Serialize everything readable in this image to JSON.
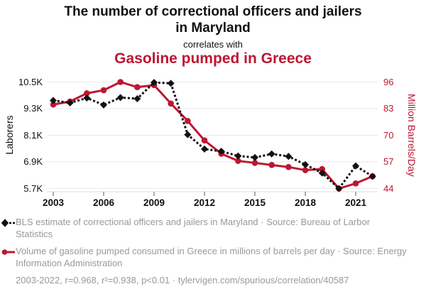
{
  "header": {
    "title": "The number of correctional officers and jailers in Maryland",
    "subtitle": "correlates with",
    "title2": "Gasoline pumped in Greece"
  },
  "colors": {
    "red": "#bd1732",
    "black": "#111111",
    "gridline": "#e8e8e8",
    "axis_line": "#dcdcdc",
    "tick_mark": "#808080",
    "muted_text": "#999999"
  },
  "chart_data": {
    "type": "line",
    "x": [
      2003,
      2004,
      2005,
      2006,
      2007,
      2008,
      2009,
      2010,
      2011,
      2012,
      2013,
      2014,
      2015,
      2016,
      2017,
      2018,
      2019,
      2020,
      2021,
      2022
    ],
    "series": [
      {
        "id": "maryland-officers",
        "name": "BLS estimate of correctional officers and jailers in Maryland",
        "axis": "left",
        "style": "dashed-diamond",
        "color": "#111111",
        "values": [
          9670,
          9560,
          9780,
          9470,
          9800,
          9750,
          10480,
          10440,
          8130,
          7480,
          7380,
          7170,
          7100,
          7260,
          7150,
          6780,
          6400,
          5700,
          6720,
          6250
        ]
      },
      {
        "id": "greece-gasoline",
        "name": "Volume of gasoline pumped consumed in Greece",
        "axis": "right",
        "style": "solid-circle",
        "color": "#bd1732",
        "values": [
          85,
          86.5,
          90.5,
          92,
          96,
          93.5,
          94.5,
          85.5,
          77,
          67.5,
          61,
          57.5,
          56.5,
          55.5,
          54.5,
          53,
          53.5,
          44,
          46.5,
          50
        ]
      }
    ],
    "left_axis": {
      "label": "Laborers",
      "ticks": [
        "10.5K",
        "9.3K",
        "8.1K",
        "6.9K",
        "5.7K"
      ],
      "tick_values": [
        10500,
        9300,
        8100,
        6900,
        5700
      ],
      "range": [
        5700,
        10500
      ]
    },
    "right_axis": {
      "label": "Million Barrels/Day",
      "ticks": [
        "96",
        "83",
        "70",
        "57",
        "44"
      ],
      "tick_values": [
        96,
        83,
        70,
        57,
        44
      ],
      "range": [
        44,
        96
      ]
    },
    "x_axis": {
      "ticks": [
        2003,
        2006,
        2009,
        2012,
        2015,
        2018,
        2021
      ]
    },
    "grid": "horizontal-only",
    "legend_position": "bottom"
  },
  "legend": {
    "items": [
      {
        "marker": "black-diamond-dashed",
        "text": "BLS estimate of correctional officers and jailers in Maryland · Source: Bureau of Larbor Statistics"
      },
      {
        "marker": "red-circle-solid",
        "text": "Volume of gasoline pumped consumed in Greece in millions of barrels per day · Source: Energy Information Administration"
      }
    ]
  },
  "footer": {
    "text": "2003-2022, r=0.968, r²=0.938, p<0.01 · tylervigen.com/spurious/correlation/40587"
  }
}
